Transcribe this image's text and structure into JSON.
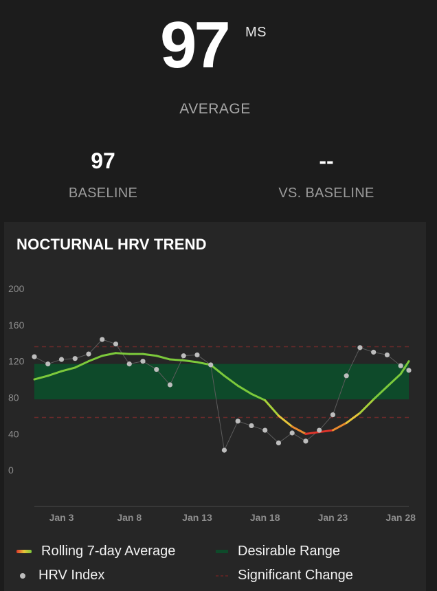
{
  "summary": {
    "average_value": "97",
    "average_unit": "MS",
    "average_label": "AVERAGE",
    "baseline_value": "97",
    "baseline_label": "BASELINE",
    "vs_baseline_value": "--",
    "vs_baseline_label": "VS. BASELINE"
  },
  "card": {
    "title": "NOCTURNAL HRV TREND"
  },
  "colors": {
    "background": "#1c1c1c",
    "card": "#262626",
    "desirable_range": "#0e4a2a",
    "rolling_good": "#7cc93b",
    "rolling_mid": "#e6c53a",
    "rolling_bad": "#e0342a",
    "hrv_dot": "#bdbdbd",
    "significant_change": "#6a2a2a"
  },
  "chart_data": {
    "type": "line",
    "title": "NOCTURNAL HRV TREND",
    "xlabel": "",
    "ylabel": "",
    "ylim": [
      -40,
      200
    ],
    "yticks": [
      0,
      40,
      80,
      120,
      160,
      200
    ],
    "x_tick_labels": [
      "Jan 3",
      "Jan 8",
      "Jan 13",
      "Jan 18",
      "Jan 23",
      "Jan 28"
    ],
    "x_tick_days": [
      3,
      8,
      13,
      18,
      23,
      28
    ],
    "xlim": [
      1,
      28.6
    ],
    "desirable_range": [
      78,
      117
    ],
    "significant_change": [
      58,
      136
    ],
    "series": [
      {
        "name": "Rolling 7-day Average",
        "days": [
          1,
          2,
          3,
          4,
          5,
          6,
          7,
          8,
          9,
          10,
          11,
          12,
          13,
          14,
          15,
          16,
          17,
          18,
          19,
          20,
          21,
          22,
          23,
          24,
          25,
          26,
          27,
          28,
          28.6
        ],
        "values": [
          100,
          104,
          109,
          113,
          120,
          126,
          129,
          128,
          128,
          126,
          122,
          121,
          119,
          116,
          104,
          93,
          84,
          77,
          60,
          48,
          40,
          42,
          44,
          52,
          63,
          78,
          92,
          106,
          120
        ]
      },
      {
        "name": "HRV Index",
        "days": [
          1,
          2,
          3,
          4,
          5,
          6,
          7,
          8,
          9,
          10,
          11,
          12,
          13,
          14,
          15,
          16,
          17,
          18,
          19,
          20,
          21,
          22,
          23,
          24,
          25,
          26,
          27,
          28,
          28.6
        ],
        "values": [
          125,
          117,
          122,
          123,
          128,
          144,
          139,
          117,
          120,
          111,
          94,
          126,
          127,
          116,
          22,
          54,
          49,
          44,
          30,
          41,
          32,
          44,
          61,
          104,
          135,
          130,
          127,
          115,
          110
        ]
      }
    ],
    "legend": [
      {
        "label": "Rolling 7-day Average",
        "kind": "gradient-line"
      },
      {
        "label": "Desirable Range",
        "kind": "green-bar"
      },
      {
        "label": "HRV Index",
        "kind": "dot"
      },
      {
        "label": "Significant Change",
        "kind": "dashed-red"
      }
    ]
  }
}
